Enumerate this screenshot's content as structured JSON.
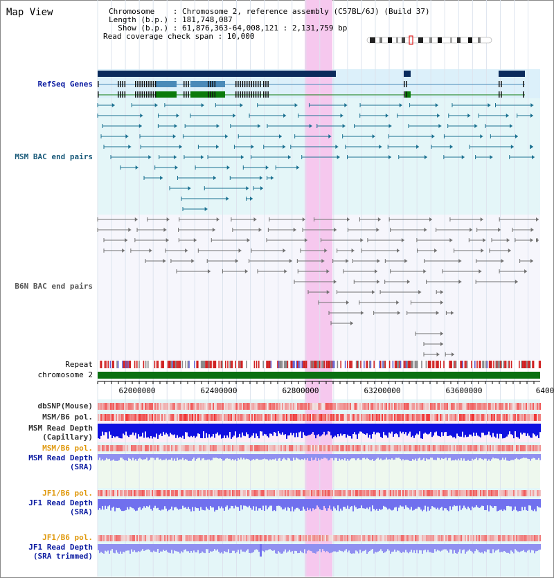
{
  "view_title": "Map View",
  "info": {
    "chromosome": "Chromosome    : Chromosome 2, reference assembly (C57BL/6J) (Build 37)",
    "length": "Length (b.p.) : 181,748,087",
    "show": "  Show (b.p.) : 61,876,363-64,008,121 : 2,131,759 bp",
    "coverage": "Read coverage check span : 10,000"
  },
  "tracks": {
    "refseq": "RefSeq Genes",
    "msm_bac": "MSM BAC end pairs",
    "b6n_bac": "B6N BAC end pairs",
    "repeat": "Repeat",
    "chromosome": "chromosome 2",
    "dbsnp": "dbSNP(Mouse)",
    "msm_b6_pol_1": "MSM/B6 pol.",
    "msm_depth_cap_1": "MSM Read Depth",
    "msm_depth_cap_2": "(Capillary)",
    "msm_b6_pol_2": "MSM/B6 pol.",
    "msm_depth_sra_1": "MSM Read Depth",
    "msm_depth_sra_2": "(SRA)",
    "jf1_b6_pol_1": "JF1/B6 pol.",
    "jf1_depth_sra_1": "JF1 Read Depth",
    "jf1_depth_sra_2": "(SRA)",
    "jf1_b6_pol_2": "JF1/B6 pol.",
    "jf1_depth_trim_1": "JF1 Read Depth",
    "jf1_depth_trim_2": "(SRA trimmed)"
  },
  "axis_ticks": [
    "62000000",
    "62400000",
    "62800000",
    "63200000",
    "63600000",
    "6400"
  ],
  "colors": {
    "gene_dark": "#0a2a5c",
    "gene_mid": "#4a8ab8",
    "gene_green": "#0a7a0a",
    "msm_pair": "#1a7090",
    "b6n_pair": "#707070",
    "chromosome_bar": "#0a7010",
    "highlight": "#f6c8ee",
    "label_blue": "#0a1aa0",
    "label_orange": "#e09a10"
  }
}
